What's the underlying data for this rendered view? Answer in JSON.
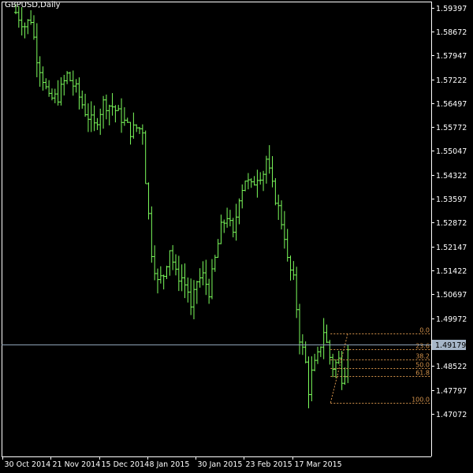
{
  "symbol_label": "GBPUSD,Daily",
  "colors": {
    "background": "#000000",
    "axis": "#ffffff",
    "bars": "#7cfc5c",
    "fib": "#d2914a",
    "bid_line": "#8fa3b8",
    "bid_box": "#a6b6c8"
  },
  "chart_data": {
    "type": "ohlc",
    "y_axis_side": "right",
    "ylim": [
      1.4657,
      1.5953
    ],
    "y_ticks": [
      "1.59397",
      "1.58672",
      "1.57947",
      "1.57222",
      "1.56497",
      "1.55772",
      "1.55047",
      "1.54322",
      "1.53597",
      "1.52872",
      "1.52147",
      "1.51422",
      "1.50697",
      "1.49972",
      "1.48522",
      "1.47797",
      "1.47072"
    ],
    "x_ticks": [
      "30 Oct 2014",
      "21 Nov 2014",
      "15 Dec 2014",
      "8 Jan 2015",
      "30 Jan 2015",
      "23 Feb 2015",
      "17 Mar 2015"
    ],
    "x_tick_bar_index": [
      0,
      16,
      32,
      48,
      64,
      80,
      96
    ],
    "current_price": "1.49179",
    "close_path": [
      [
        0,
        1.5925
      ],
      [
        3,
        1.5885
      ],
      [
        5,
        1.5905
      ],
      [
        7,
        1.579
      ],
      [
        9,
        1.5725
      ],
      [
        11,
        1.566
      ],
      [
        14,
        1.567
      ],
      [
        17,
        1.5735
      ],
      [
        20,
        1.569
      ],
      [
        23,
        1.5625
      ],
      [
        26,
        1.558
      ],
      [
        29,
        1.565
      ],
      [
        32,
        1.564
      ],
      [
        35,
        1.5605
      ],
      [
        38,
        1.5565
      ],
      [
        40,
        1.5575
      ],
      [
        42,
        1.557
      ],
      [
        43,
        1.542
      ],
      [
        45,
        1.52
      ],
      [
        47,
        1.5105
      ],
      [
        49,
        1.513
      ],
      [
        51,
        1.521
      ],
      [
        53,
        1.513
      ],
      [
        55,
        1.512
      ],
      [
        57,
        1.508
      ],
      [
        58,
        1.502
      ],
      [
        60,
        1.511
      ],
      [
        62,
        1.5125
      ],
      [
        64,
        1.508
      ],
      [
        66,
        1.5175
      ],
      [
        68,
        1.527
      ],
      [
        70,
        1.531
      ],
      [
        72,
        1.5245
      ],
      [
        74,
        1.537
      ],
      [
        76,
        1.542
      ],
      [
        78,
        1.5395
      ],
      [
        80,
        1.543
      ],
      [
        82,
        1.544
      ],
      [
        83,
        1.548
      ],
      [
        85,
        1.5395
      ],
      [
        87,
        1.533
      ],
      [
        89,
        1.525
      ],
      [
        90,
        1.517
      ],
      [
        92,
        1.511
      ],
      [
        93,
        1.503
      ],
      [
        94,
        1.494
      ],
      [
        96,
        1.486
      ],
      [
        97,
        1.478
      ],
      [
        98,
        1.483
      ],
      [
        100,
        1.488
      ],
      [
        102,
        1.496
      ],
      [
        104,
        1.488
      ],
      [
        105,
        1.485
      ],
      [
        107,
        1.487
      ],
      [
        108,
        1.482
      ],
      [
        109,
        1.484
      ],
      [
        110,
        1.4918
      ]
    ],
    "fibonacci": {
      "high": 1.4952,
      "low": 1.4741,
      "levels": [
        {
          "label": "0.0",
          "ratio": 0.0
        },
        {
          "label": "23.6",
          "ratio": 0.236
        },
        {
          "label": "38.2",
          "ratio": 0.382
        },
        {
          "label": "50.0",
          "ratio": 0.5
        },
        {
          "label": "61.8",
          "ratio": 0.618
        },
        {
          "label": "100.0",
          "ratio": 1.0
        }
      ]
    }
  }
}
